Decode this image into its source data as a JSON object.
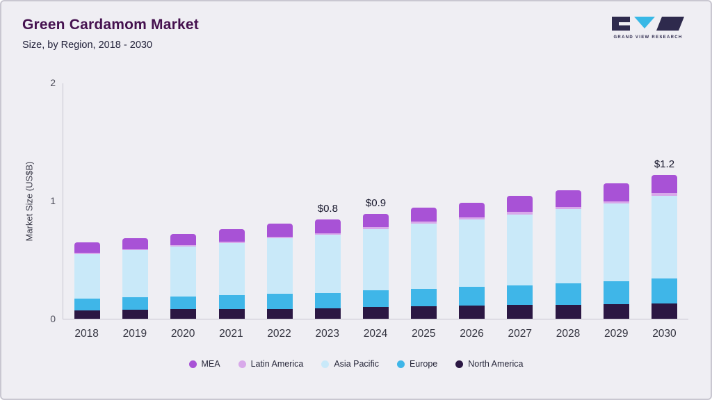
{
  "header": {
    "title": "Green Cardamom Market",
    "subtitle": "Size, by Region, 2018 - 2030"
  },
  "logo": {
    "text": "GRAND VIEW RESEARCH",
    "dark_color": "#2e2a4d",
    "accent_color": "#38b8e6"
  },
  "chart_data": {
    "type": "bar",
    "stacked": true,
    "title": "Green Cardamom Market Size, by Region, 2018 - 2030",
    "ylabel": "Market Size (US$B)",
    "ylim": [
      0,
      2
    ],
    "yticks": [
      0,
      1,
      2
    ],
    "grid": false,
    "legend_position": "bottom",
    "categories": [
      "2018",
      "2019",
      "2020",
      "2021",
      "2022",
      "2023",
      "2024",
      "2025",
      "2026",
      "2027",
      "2028",
      "2029",
      "2030"
    ],
    "series": [
      {
        "name": "North America",
        "color": "#2b1743",
        "values": [
          0.07,
          0.075,
          0.08,
          0.08,
          0.085,
          0.09,
          0.1,
          0.105,
          0.11,
          0.115,
          0.12,
          0.125,
          0.13
        ]
      },
      {
        "name": "Europe",
        "color": "#3fb6e8",
        "values": [
          0.1,
          0.105,
          0.11,
          0.12,
          0.125,
          0.13,
          0.14,
          0.15,
          0.16,
          0.17,
          0.18,
          0.19,
          0.21
        ]
      },
      {
        "name": "Asia Pacific",
        "color": "#c9e9f9",
        "values": [
          0.38,
          0.4,
          0.42,
          0.44,
          0.47,
          0.49,
          0.52,
          0.55,
          0.57,
          0.6,
          0.63,
          0.66,
          0.7
        ]
      },
      {
        "name": "Latin America",
        "color": "#d8a9ea",
        "values": [
          0.01,
          0.01,
          0.012,
          0.013,
          0.014,
          0.015,
          0.016,
          0.017,
          0.018,
          0.02,
          0.02,
          0.022,
          0.024
        ]
      },
      {
        "name": "MEA",
        "color": "#a852d6",
        "values": [
          0.09,
          0.09,
          0.098,
          0.107,
          0.111,
          0.115,
          0.114,
          0.118,
          0.122,
          0.135,
          0.14,
          0.153,
          0.156
        ]
      }
    ],
    "totals": [
      0.65,
      0.68,
      0.72,
      0.76,
      0.81,
      0.84,
      0.89,
      0.94,
      0.98,
      1.04,
      1.09,
      1.15,
      1.22
    ],
    "annotations": {
      "2023": "$0.8",
      "2024": "$0.9",
      "2030": "$1.2"
    }
  }
}
